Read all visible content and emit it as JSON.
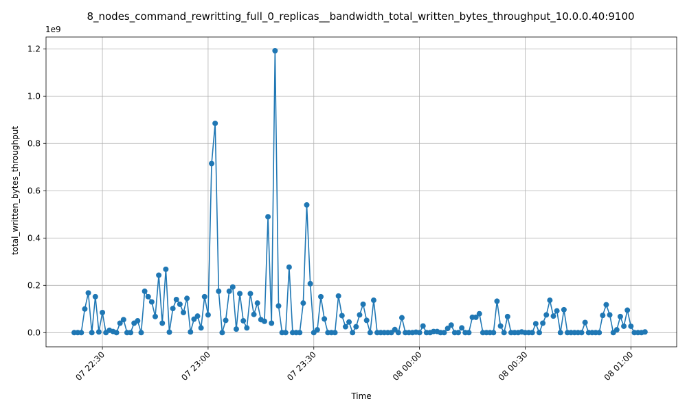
{
  "chart_data": {
    "type": "line",
    "title": "8_nodes_command_rewritting_full_0_replicas__bandwidth_total_written_bytes_throughput_10.0.0.40:9100",
    "xlabel": "Time",
    "ylabel": "total_written_bytes_throughput",
    "y_offset_label": "1e9",
    "y_scale": 1000000000,
    "x_unit": "minutes",
    "x_start": "2023-01-07 22:22",
    "x_interval_minutes": 1,
    "xlim": [
      -8,
      171
    ],
    "ylim": [
      -0.06,
      1.25
    ],
    "grid": true,
    "color": "#1f77b4",
    "x_ticks": [
      {
        "value": 8,
        "label": "07 22:30"
      },
      {
        "value": 38,
        "label": "07 23:00"
      },
      {
        "value": 68,
        "label": "07 23:30"
      },
      {
        "value": 98,
        "label": "08 00:00"
      },
      {
        "value": 128,
        "label": "08 00:30"
      },
      {
        "value": 158,
        "label": "08 01:00"
      }
    ],
    "y_ticks": [
      {
        "value": 0.0,
        "label": "0.0"
      },
      {
        "value": 0.2,
        "label": "0.2"
      },
      {
        "value": 0.4,
        "label": "0.4"
      },
      {
        "value": 0.6,
        "label": "0.6"
      },
      {
        "value": 0.8,
        "label": "0.8"
      },
      {
        "value": 1.0,
        "label": "1.0"
      },
      {
        "value": 1.2,
        "label": "1.2"
      }
    ],
    "series": [
      {
        "values": [
          0,
          0,
          0,
          0.1,
          0.168,
          0,
          0.152,
          0.003,
          0.085,
          0,
          0.01,
          0.005,
          0,
          0.04,
          0.055,
          0,
          0,
          0.04,
          0.05,
          0,
          0.175,
          0.152,
          0.13,
          0.068,
          0.243,
          0.04,
          0.268,
          0.002,
          0.102,
          0.14,
          0.12,
          0.085,
          0.145,
          0.003,
          0.057,
          0.07,
          0.02,
          0.152,
          0.075,
          0.715,
          0.885,
          0.175,
          0,
          0.052,
          0.175,
          0.193,
          0.015,
          0.165,
          0.05,
          0.02,
          0.165,
          0.077,
          0.125,
          0.055,
          0.048,
          0.49,
          0.04,
          1.192,
          0.113,
          0,
          0,
          0.277,
          0,
          0,
          0,
          0.125,
          0.54,
          0.207,
          0,
          0.012,
          0.152,
          0.058,
          0,
          0,
          0,
          0.155,
          0.072,
          0.025,
          0.045,
          0,
          0.025,
          0.075,
          0.12,
          0.052,
          0,
          0.137,
          0,
          0,
          0,
          0,
          0,
          0.013,
          0,
          0.063,
          0,
          0,
          0,
          0.002,
          0,
          0.028,
          0,
          0,
          0.005,
          0.005,
          0,
          0,
          0.018,
          0.032,
          0,
          0,
          0.02,
          0,
          0,
          0.065,
          0.065,
          0.08,
          0,
          0,
          0,
          0,
          0.133,
          0.028,
          0,
          0.068,
          0,
          0,
          0,
          0.003,
          0,
          0,
          0,
          0.038,
          0,
          0.04,
          0.075,
          0.137,
          0.07,
          0.092,
          0,
          0.097,
          0,
          0,
          0,
          0,
          0,
          0.043,
          0,
          0,
          0,
          0,
          0.073,
          0.118,
          0.075,
          0,
          0.012,
          0.068,
          0.027,
          0.095,
          0.027,
          0,
          0,
          0,
          0.003
        ]
      }
    ]
  }
}
